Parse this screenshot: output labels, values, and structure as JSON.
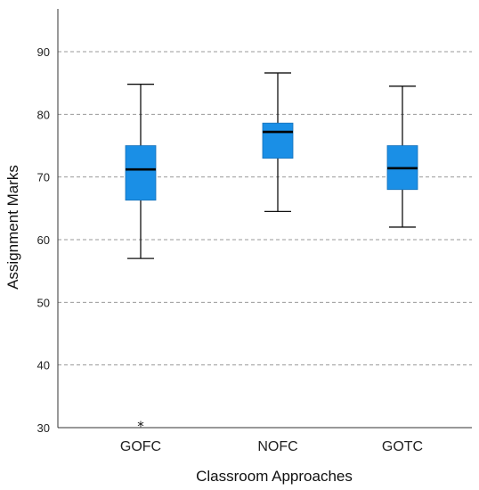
{
  "chart_data": {
    "type": "box",
    "xlabel": "Classroom Approaches",
    "ylabel": "Assignment  Marks",
    "ylim": [
      30,
      96
    ],
    "yticks": [
      30,
      40,
      50,
      60,
      70,
      80,
      90
    ],
    "grid": true,
    "box_color": "#1a8fe6",
    "categories": [
      "GOFC",
      "NOFC",
      "GOTC"
    ],
    "boxes": [
      {
        "name": "GOFC",
        "whisker_low": 57,
        "q1": 66.3,
        "median": 71.2,
        "q3": 75,
        "whisker_high": 84.8,
        "outliers": [
          30.5
        ]
      },
      {
        "name": "NOFC",
        "whisker_low": 64.5,
        "q1": 73,
        "median": 77.2,
        "q3": 78.6,
        "whisker_high": 86.6,
        "outliers": []
      },
      {
        "name": "GOTC",
        "whisker_low": 62,
        "q1": 68,
        "median": 71.4,
        "q3": 75,
        "whisker_high": 84.5,
        "outliers": []
      }
    ]
  }
}
